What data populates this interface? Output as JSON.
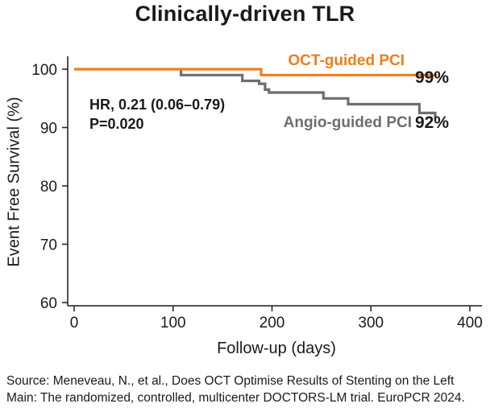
{
  "chart_data": {
    "type": "line",
    "title": "Clinically-driven TLR",
    "xlabel": "Follow-up (days)",
    "ylabel": "Event Free Survival (%)",
    "xlim": [
      0,
      400
    ],
    "ylim": [
      60,
      102
    ],
    "xticks": [
      0,
      100,
      200,
      300,
      400
    ],
    "yticks": [
      60,
      70,
      80,
      90,
      100
    ],
    "grid": false,
    "series": [
      {
        "name": "OCT-guided PCI",
        "color": "#f07d1a",
        "end_label": "99%",
        "x": [
          0,
          189,
          189,
          367
        ],
        "y": [
          100,
          100,
          99,
          99
        ]
      },
      {
        "name": "Angio-guided PCI",
        "color": "#6d6e71",
        "end_label": "92%",
        "x": [
          108,
          108,
          170,
          170,
          187,
          187,
          193,
          193,
          197,
          197,
          252,
          252,
          277,
          277,
          349,
          349,
          365,
          365
        ],
        "y": [
          100,
          99,
          99,
          98,
          98,
          97.5,
          97.5,
          96.5,
          96.5,
          96,
          96,
          95,
          95,
          94,
          94,
          92.5,
          92.5,
          91.5
        ]
      }
    ],
    "annotations": [
      "HR, 0.21 (0.06–0.79)",
      "P=0.020"
    ]
  },
  "source": {
    "line1": "Source: Meneveau, N., et al., Does OCT Optimise Results of Stenting on the Left",
    "line2": "Main: The randomized, controlled, multicenter DOCTORS-LM trial. EuroPCR 2024."
  }
}
